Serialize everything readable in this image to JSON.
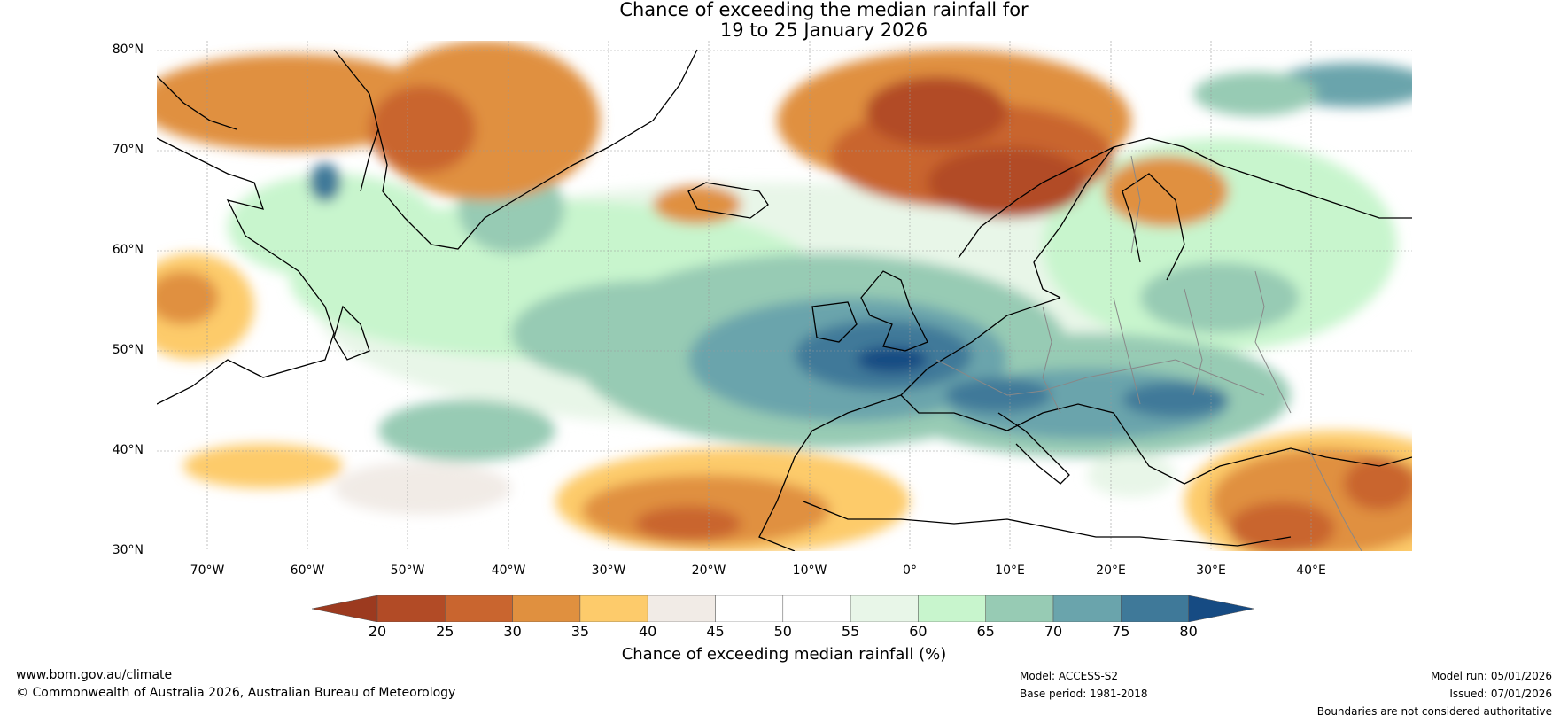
{
  "title": {
    "line1": "Chance of exceeding the median rainfall for",
    "line2": "19 to 25 January 2026"
  },
  "map": {
    "lat_labels": [
      "80°N",
      "70°N",
      "60°N",
      "50°N",
      "40°N",
      "30°N"
    ],
    "lon_labels": [
      "70°W",
      "60°W",
      "50°W",
      "40°W",
      "30°W",
      "20°W",
      "10°W",
      "0°",
      "10°E",
      "20°E",
      "30°E",
      "40°E"
    ],
    "lat_range": [
      30,
      81
    ],
    "lon_range": [
      -75,
      50
    ]
  },
  "colorbar": {
    "ticks": [
      "20",
      "25",
      "30",
      "35",
      "40",
      "45",
      "50",
      "55",
      "60",
      "65",
      "70",
      "75",
      "80"
    ],
    "colors": [
      "#9c3a1f",
      "#b24b26",
      "#c9652f",
      "#e0903f",
      "#fdcb6b",
      "#f1ebe6",
      "#ffffff",
      "#ffffff",
      "#e8f6e8",
      "#c8f5cd",
      "#97cbb4",
      "#6aa4ac",
      "#3f7999",
      "#164b83"
    ],
    "label": "Chance of exceeding median rainfall (%)"
  },
  "footer": {
    "website": "www.bom.gov.au/climate",
    "copyright": "© Commonwealth of Australia 2026, Australian Bureau of Meteorology",
    "model": "Model: ACCESS-S2",
    "base_period": "Base period: 1981-2018",
    "model_run": "Model run: 05/01/2026",
    "issued": "Issued: 07/01/2026",
    "disclaimer": "Boundaries are not considered authoritative"
  }
}
